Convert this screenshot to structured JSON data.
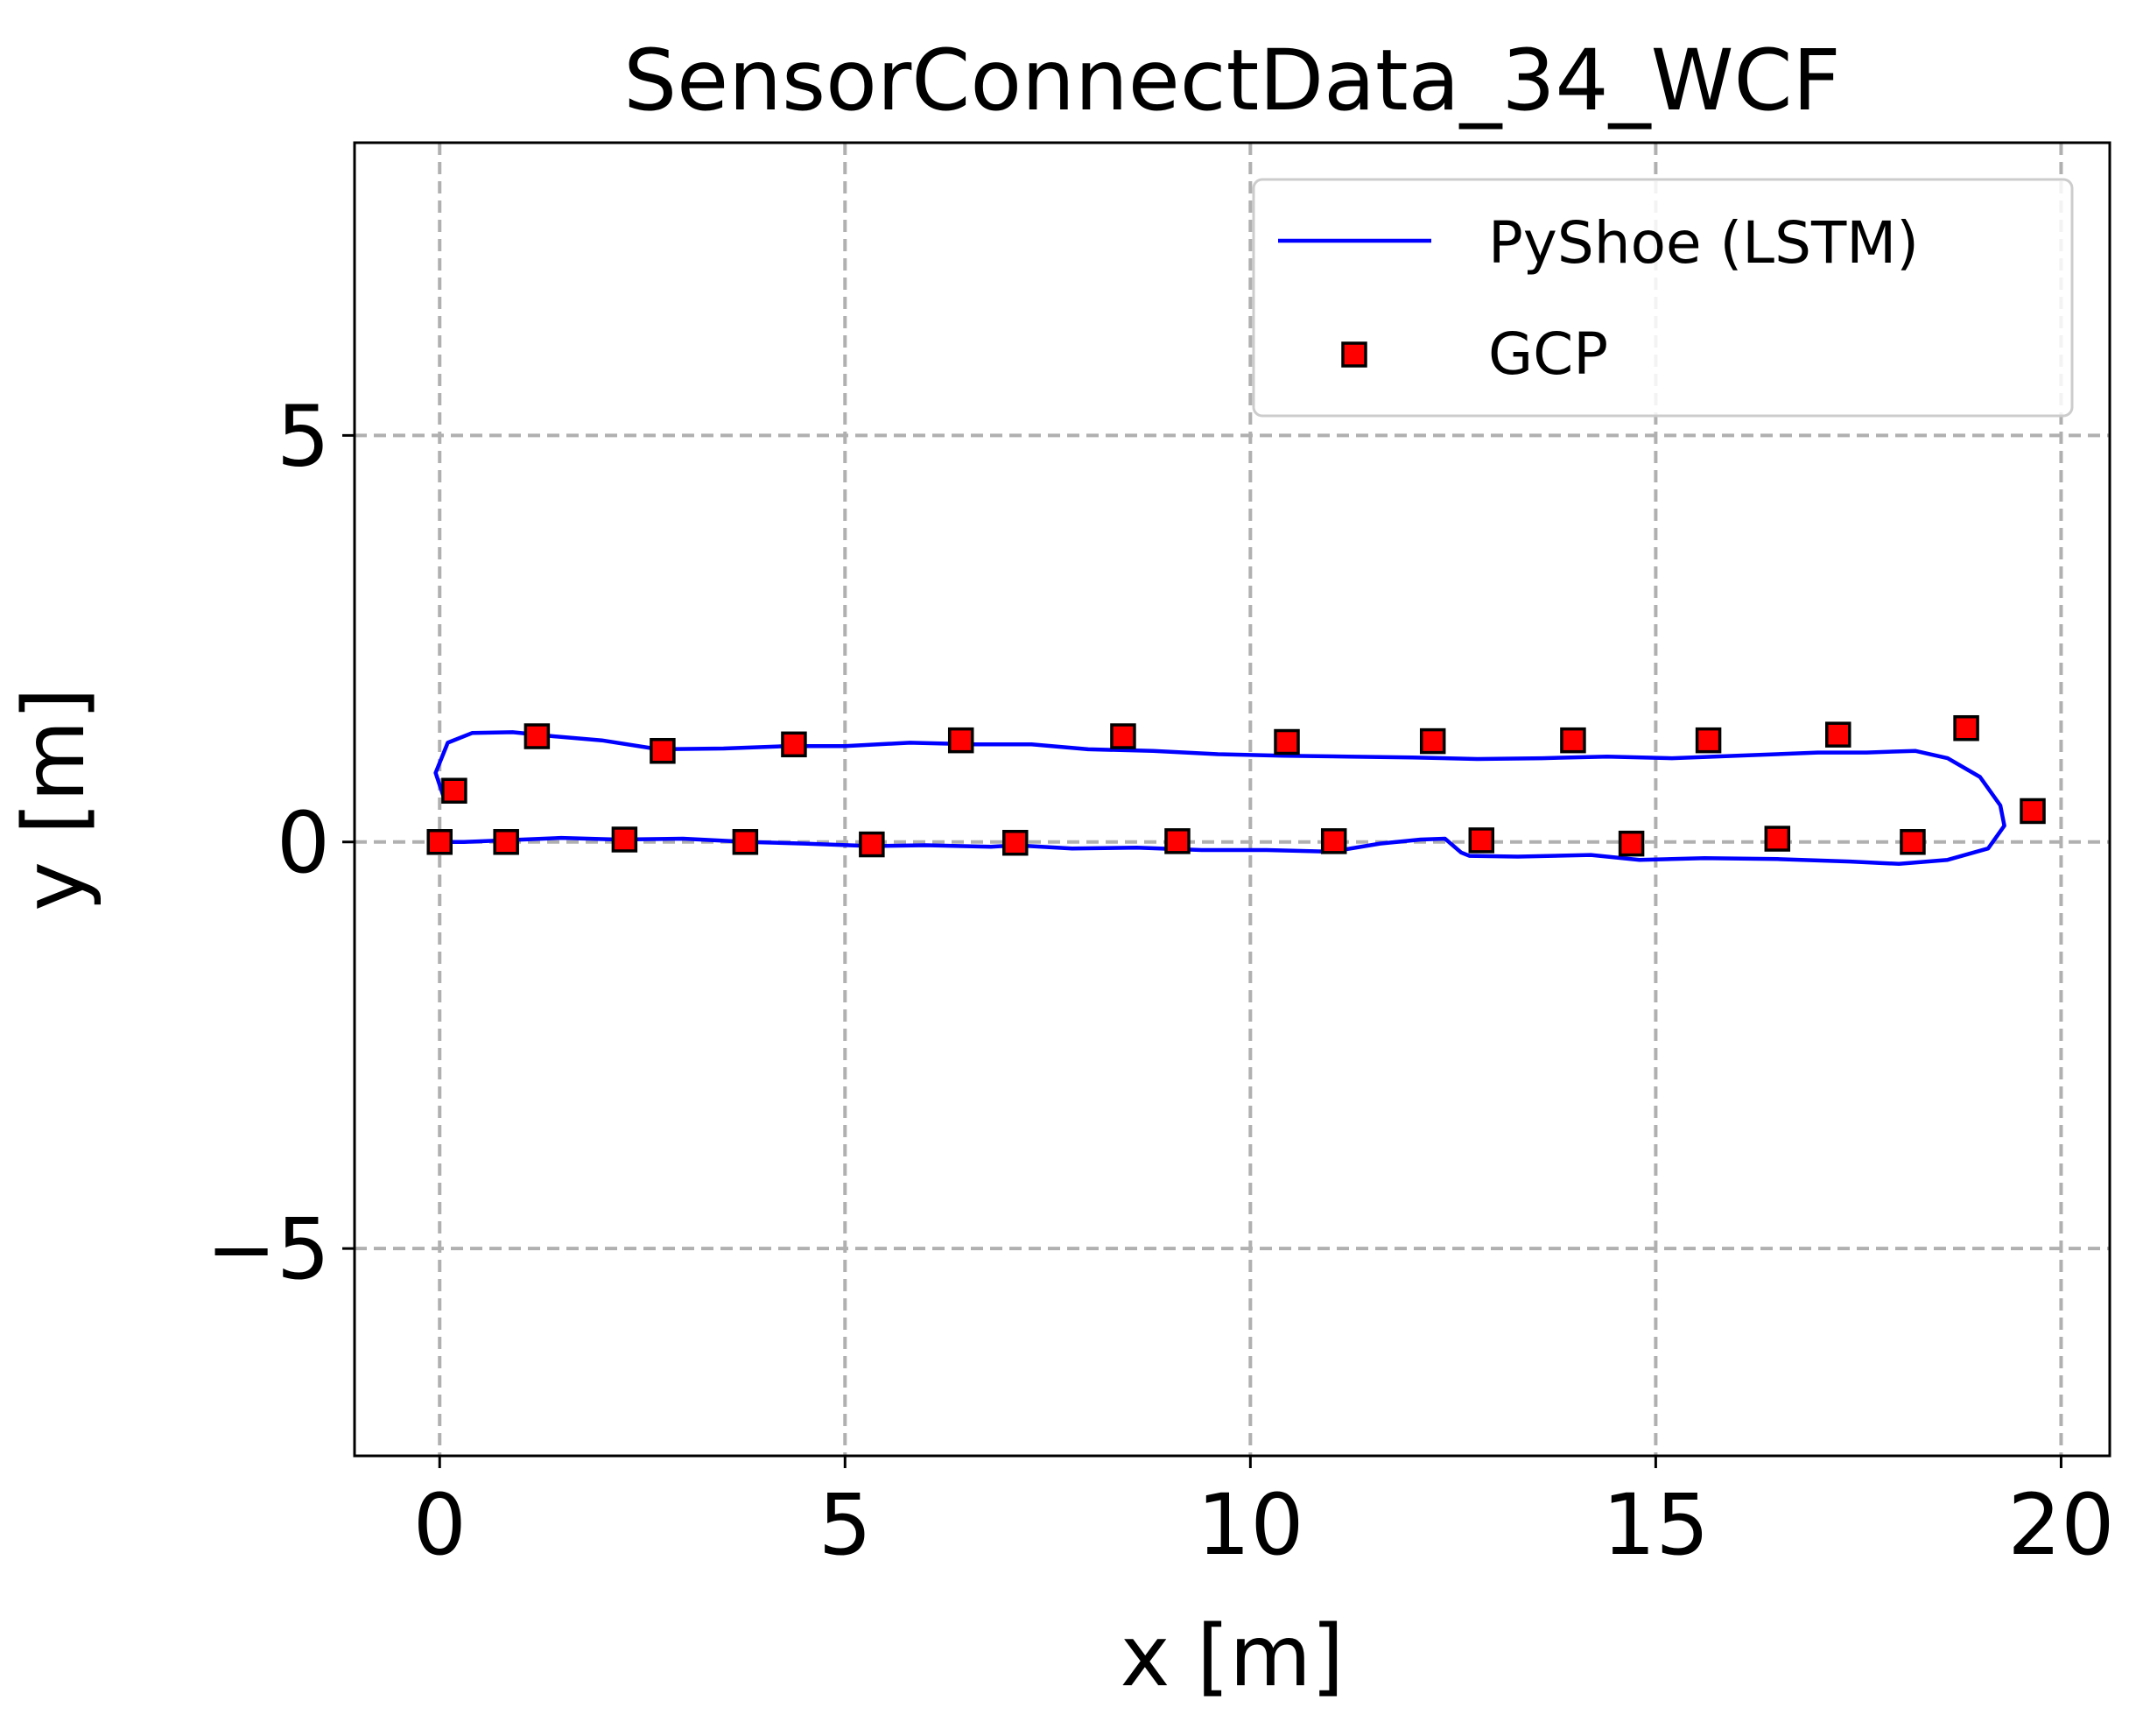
{
  "chart_data": {
    "type": "line",
    "title": "SensorConnectData_34_WCF",
    "xlabel": "x [m]",
    "ylabel": "y [m]",
    "xlim": [
      -1.05,
      20.6
    ],
    "ylim": [
      -7.55,
      8.6
    ],
    "xticks": [
      0,
      5,
      10,
      15,
      20
    ],
    "xtick_labels": [
      "0",
      "5",
      "10",
      "15",
      "20"
    ],
    "yticks": [
      -5,
      0,
      5
    ],
    "ytick_labels": [
      "−5",
      "0",
      "5"
    ],
    "grid": true,
    "legend_position": "top-right",
    "series": [
      {
        "name": "PyShoe (LSTM)",
        "kind": "line",
        "color": "#0000ff",
        "x": [
          0,
          0.3,
          0.8,
          1.5,
          2.2,
          3,
          3.8,
          4.5,
          5.3,
          6,
          6.8,
          7.1,
          7.8,
          8.6,
          9.4,
          10.2,
          11,
          11.6,
          12.1,
          12.4,
          12.6,
          12.7,
          13.3,
          14.2,
          14.8,
          15.6,
          16.5,
          17.4,
          18,
          18.6,
          19.1,
          19.3,
          19.25,
          19.0,
          18.6,
          18.2,
          17.6,
          17.0,
          16.0,
          15.2,
          14.4,
          13.6,
          12.8,
          12.0,
          11.2,
          10.4,
          9.6,
          8.8,
          8.0,
          7.3,
          6.6,
          5.8,
          5.0,
          4.3,
          3.5,
          2.7,
          2.0,
          1.4,
          0.9,
          0.4,
          0.1,
          -0.05,
          0.05,
          0.3
        ],
        "y": [
          0,
          0,
          0.02,
          0.05,
          0.03,
          0.04,
          0,
          -0.02,
          -0.05,
          -0.04,
          -0.06,
          -0.04,
          -0.08,
          -0.07,
          -0.1,
          -0.1,
          -0.12,
          -0.02,
          0.03,
          0.04,
          -0.13,
          -0.17,
          -0.18,
          -0.16,
          -0.22,
          -0.2,
          -0.21,
          -0.24,
          -0.27,
          -0.22,
          -0.08,
          0.2,
          0.45,
          0.8,
          1.03,
          1.12,
          1.1,
          1.1,
          1.06,
          1.03,
          1.05,
          1.03,
          1.02,
          1.04,
          1.05,
          1.06,
          1.08,
          1.12,
          1.14,
          1.2,
          1.2,
          1.22,
          1.18,
          1.18,
          1.15,
          1.14,
          1.25,
          1.3,
          1.35,
          1.34,
          1.22,
          0.85,
          0.55,
          0.52
        ]
      },
      {
        "name": "GCP",
        "kind": "scatter",
        "marker": "square",
        "color": "#ff0000",
        "x": [
          0,
          0.82,
          2.28,
          3.77,
          5.33,
          7.1,
          9.1,
          11.03,
          12.85,
          14.7,
          16.5,
          18.17,
          19.65,
          18.83,
          17.25,
          15.65,
          13.98,
          12.25,
          10.45,
          8.43,
          6.43,
          4.37,
          2.75,
          1.2,
          0.18
        ],
        "y": [
          0,
          0,
          0.03,
          0,
          -0.03,
          -0.01,
          0.01,
          0.01,
          0.02,
          -0.02,
          0.04,
          0,
          0.38,
          1.4,
          1.32,
          1.25,
          1.25,
          1.24,
          1.23,
          1.3,
          1.25,
          1.2,
          1.12,
          1.3,
          0.63
        ]
      }
    ]
  }
}
